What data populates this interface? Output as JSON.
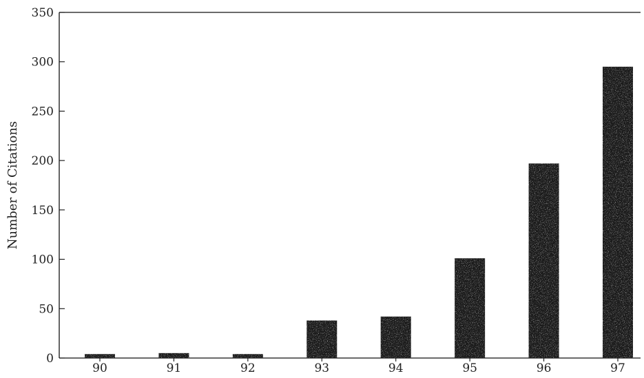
{
  "chart_data": {
    "type": "bar",
    "title": "",
    "xlabel": "",
    "ylabel": "Number of Citations",
    "categories": [
      "90",
      "91",
      "92",
      "93",
      "94",
      "95",
      "96",
      "97"
    ],
    "values": [
      4,
      5,
      4,
      38,
      42,
      101,
      197,
      295
    ],
    "ylim": [
      0,
      350
    ],
    "yticks": [
      0,
      50,
      100,
      150,
      200,
      250,
      300,
      350
    ],
    "grid": false,
    "legend": "none",
    "bar_color": "#1a1a1a"
  }
}
